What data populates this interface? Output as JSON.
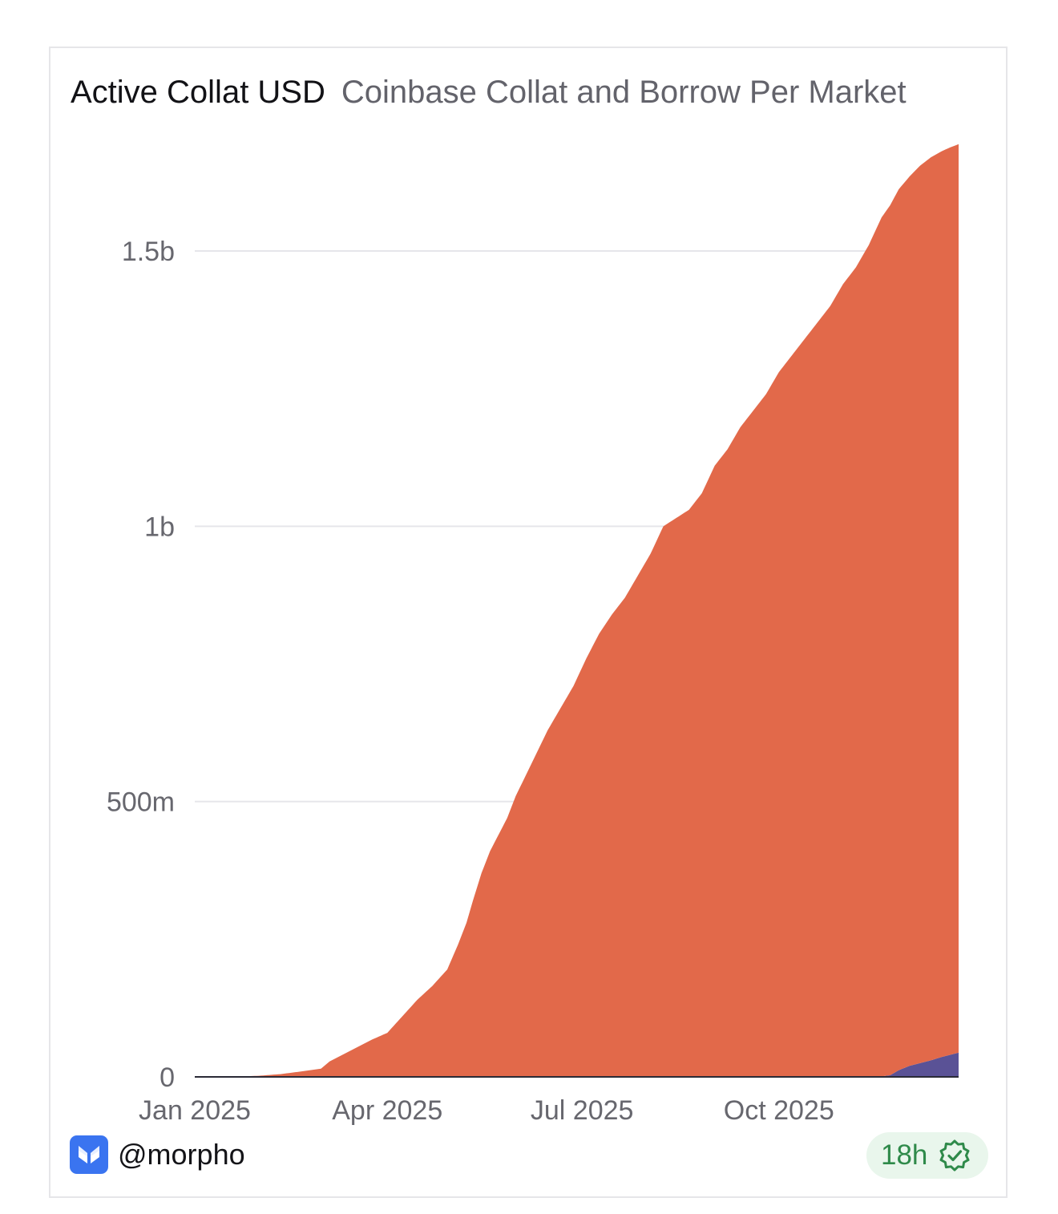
{
  "header": {
    "title": "Active Collat USD",
    "subtitle": "Coinbase Collat and Borrow Per Market"
  },
  "footer": {
    "handle": "@morpho",
    "freshness": "18h",
    "logo_icon": "morpho-butterfly-icon",
    "freshness_icon": "verified-check-badge-icon"
  },
  "colors": {
    "collat": "#e2694a",
    "borrow": "#5a5296",
    "grid": "#e6e6ea",
    "brand": "#3a74f0",
    "freshness_bg": "#e9f6ec",
    "freshness_text": "#2f8a4a"
  },
  "chart_data": {
    "type": "area",
    "stacked": true,
    "x_type": "date",
    "xlim": [
      "2025-01-01",
      "2025-12-24"
    ],
    "ylim": [
      0,
      1650000000
    ],
    "x_ticks": [
      {
        "value": "2025-01-01",
        "label": "Jan 2025"
      },
      {
        "value": "2025-04-01",
        "label": "Apr 2025"
      },
      {
        "value": "2025-07-01",
        "label": "Jul 2025"
      },
      {
        "value": "2025-10-01",
        "label": "Oct 2025"
      }
    ],
    "y_ticks": [
      {
        "value": 0,
        "label": "0"
      },
      {
        "value": 500000000,
        "label": "500m"
      },
      {
        "value": 1000000000,
        "label": "1b"
      },
      {
        "value": 1500000000,
        "label": "1.5b"
      }
    ],
    "grid": "horizontal",
    "legend": "none",
    "series": [
      {
        "color": "#e2694a",
        "x": [
          "2025-01-01",
          "2025-01-15",
          "2025-01-31",
          "2025-02-10",
          "2025-02-20",
          "2025-03-01",
          "2025-03-05",
          "2025-03-10",
          "2025-03-15",
          "2025-03-20",
          "2025-03-25",
          "2025-04-01",
          "2025-04-08",
          "2025-04-15",
          "2025-04-22",
          "2025-04-29",
          "2025-05-04",
          "2025-05-08",
          "2025-05-11",
          "2025-05-15",
          "2025-05-19",
          "2025-05-23",
          "2025-05-27",
          "2025-05-31",
          "2025-06-05",
          "2025-06-10",
          "2025-06-15",
          "2025-06-21",
          "2025-06-27",
          "2025-07-03",
          "2025-07-09",
          "2025-07-15",
          "2025-07-21",
          "2025-07-27",
          "2025-08-02",
          "2025-08-08",
          "2025-08-14",
          "2025-08-20",
          "2025-08-26",
          "2025-09-01",
          "2025-09-07",
          "2025-09-13",
          "2025-09-19",
          "2025-09-25",
          "2025-10-01",
          "2025-10-07",
          "2025-10-13",
          "2025-10-19",
          "2025-10-25",
          "2025-10-31",
          "2025-11-06",
          "2025-11-12",
          "2025-11-18",
          "2025-11-22",
          "2025-11-24",
          "2025-11-26",
          "2025-12-01",
          "2025-12-06",
          "2025-12-11",
          "2025-12-16",
          "2025-12-20",
          "2025-12-24"
        ],
        "values": [
          0,
          0,
          2000000,
          5000000,
          10000000,
          15000000,
          28000000,
          38000000,
          48000000,
          58000000,
          68000000,
          80000000,
          110000000,
          140000000,
          165000000,
          195000000,
          240000000,
          280000000,
          320000000,
          370000000,
          410000000,
          440000000,
          470000000,
          510000000,
          550000000,
          590000000,
          630000000,
          670000000,
          710000000,
          760000000,
          805000000,
          840000000,
          870000000,
          910000000,
          950000000,
          1000000000,
          1015000000,
          1030000000,
          1060000000,
          1110000000,
          1140000000,
          1180000000,
          1210000000,
          1240000000,
          1280000000,
          1310000000,
          1340000000,
          1370000000,
          1400000000,
          1440000000,
          1470000000,
          1510000000,
          1560000000,
          1580000000,
          1590000000,
          1600000000,
          1615000000,
          1630000000,
          1640000000,
          1645000000,
          1648000000,
          1650000000
        ]
      },
      {
        "color": "#5a5296",
        "x": [
          "2025-01-01",
          "2025-11-01",
          "2025-11-18",
          "2025-11-22",
          "2025-11-26",
          "2025-12-01",
          "2025-12-06",
          "2025-12-11",
          "2025-12-16",
          "2025-12-20",
          "2025-12-24"
        ],
        "values": [
          0,
          0,
          1000000,
          3000000,
          12000000,
          20000000,
          25000000,
          30000000,
          36000000,
          40000000,
          44000000
        ]
      }
    ]
  }
}
